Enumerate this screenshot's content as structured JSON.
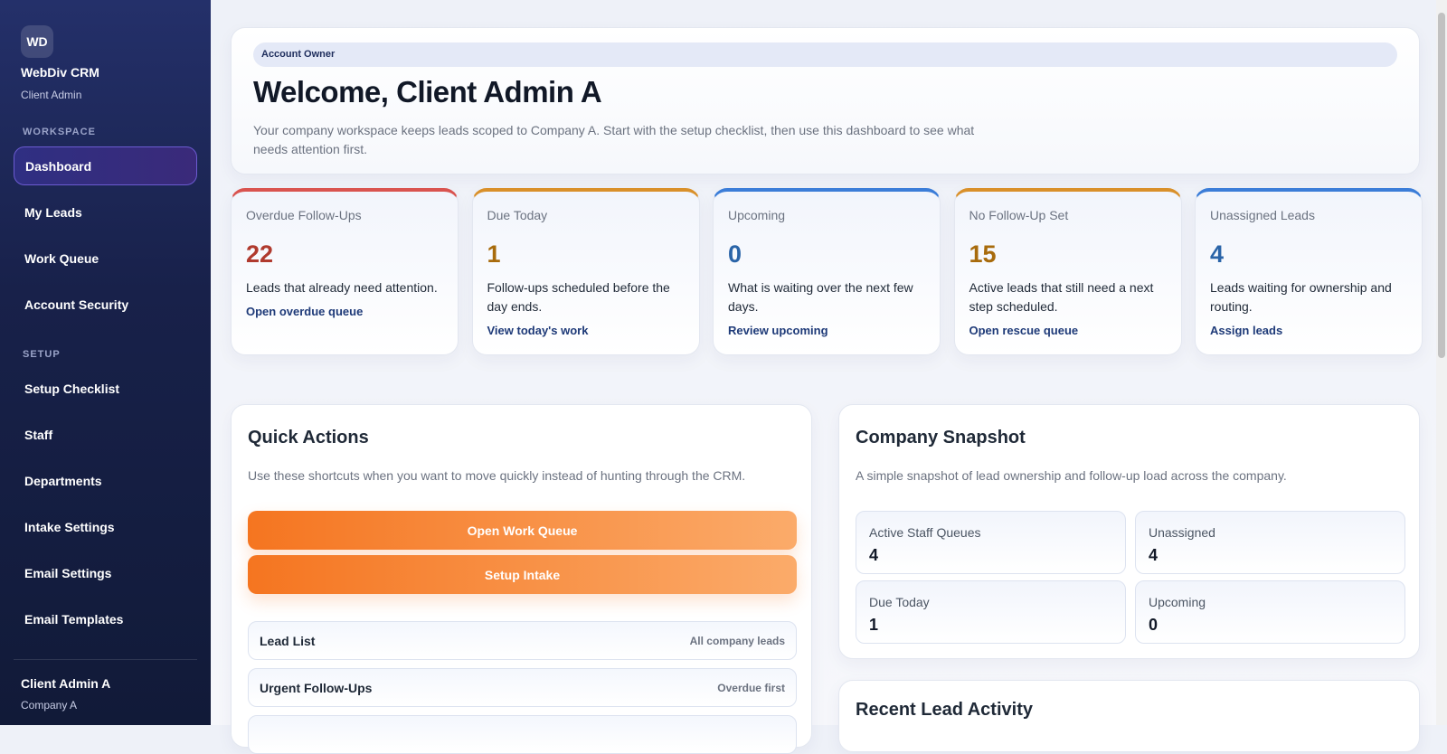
{
  "sidebar": {
    "logo": "WD",
    "brand": "WebDiv CRM",
    "role": "Client Admin",
    "sections": [
      {
        "title": "WORKSPACE",
        "items": [
          "Dashboard",
          "My Leads",
          "Work Queue",
          "Account Security"
        ]
      },
      {
        "title": "SETUP",
        "items": [
          "Setup Checklist",
          "Staff",
          "Departments",
          "Intake Settings",
          "Email Settings",
          "Email Templates"
        ]
      }
    ],
    "user": {
      "name": "Client Admin A",
      "company": "Company A"
    }
  },
  "header": {
    "badge": "Account Owner",
    "title": "Welcome, Client Admin A",
    "description": "Your company workspace keeps leads scoped to Company A. Start with the setup checklist, then use this dashboard to see what needs attention first."
  },
  "stats": [
    {
      "label": "Overdue Follow-Ups",
      "value": 22,
      "description": "Leads that already need attention.",
      "link": "Open overdue queue"
    },
    {
      "label": "Due Today",
      "value": 1,
      "description": "Follow-ups scheduled before the day ends.",
      "link": "View today's work"
    },
    {
      "label": "Upcoming",
      "value": 0,
      "description": "What is waiting over the next few days.",
      "link": "Review upcoming"
    },
    {
      "label": "No Follow-Up Set",
      "value": 15,
      "description": "Active leads that still need a next step scheduled.",
      "link": "Open rescue queue"
    },
    {
      "label": "Unassigned Leads",
      "value": 4,
      "description": "Leads waiting for ownership and routing.",
      "link": "Assign leads"
    }
  ],
  "quick_actions": {
    "title": "Quick Actions",
    "description": "Use these shortcuts when you want to move quickly instead of hunting through the CRM.",
    "buttons": [
      "Open Work Queue",
      "Setup Intake"
    ],
    "links": [
      {
        "label": "Lead List",
        "hint": "All company leads"
      },
      {
        "label": "Urgent Follow-Ups",
        "hint": "Overdue first"
      }
    ]
  },
  "snapshot": {
    "title": "Company Snapshot",
    "description": "A simple snapshot of lead ownership and follow-up load across the company.",
    "metrics": [
      {
        "label": "Active Staff Queues",
        "value": 4
      },
      {
        "label": "Unassigned",
        "value": 4
      },
      {
        "label": "Due Today",
        "value": 1
      },
      {
        "label": "Upcoming",
        "value": 0
      }
    ]
  },
  "activity": {
    "title": "Recent Lead Activity"
  }
}
